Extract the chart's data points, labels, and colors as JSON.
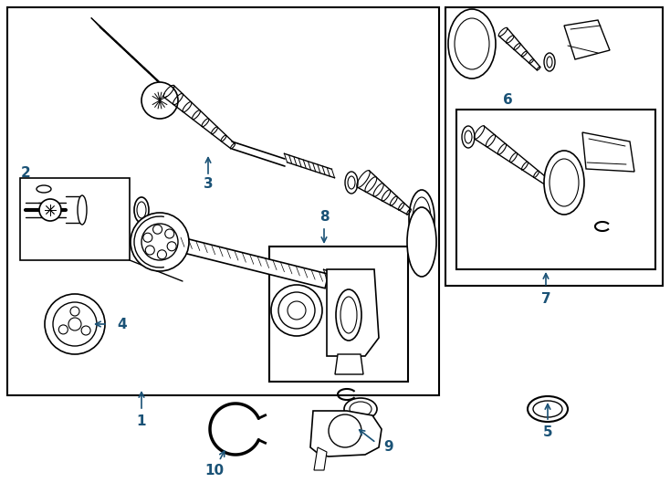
{
  "bg": "#ffffff",
  "lc": "#000000",
  "label_color": "#1a5276",
  "fig_w": 7.34,
  "fig_h": 5.4,
  "dpi": 100
}
